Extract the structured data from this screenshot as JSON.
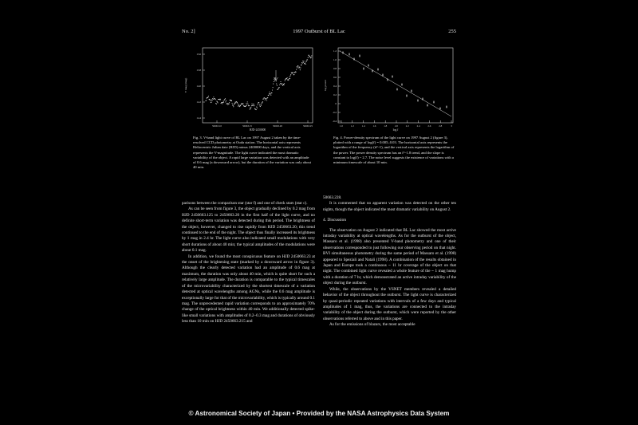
{
  "header": {
    "left": "No. 2]",
    "center": "1997 Outburst of BL Lac",
    "right": "255"
  },
  "fig3": {
    "ylabel": "V mag (mag)",
    "xlabel": "HJD-2450000",
    "yticks": [
      "13.6",
      "13.8",
      "14.0",
      "14.2",
      "14.4"
    ],
    "xticks": [
      "50663.10",
      "50663.15",
      "50663.20",
      "50663.25"
    ],
    "caption": "Fig. 3. V-band light curve of BL Lac on 1997 August 2 taken by the time-resolved CCD photometry at Ouda station. The horizontal axis represents Heliocentric Julian date (HJD) minus 2400000 days, and the vertical axis represents the V-magnitude. The light curve indicated the most dramatic variability of the object. A rapid large variation was detected with an amplitude of 0.6 mag (a downward arrow), but the duration of the variation was only about 40 min."
  },
  "fig4": {
    "ylabel": "log power",
    "xlabel": "log f",
    "yticks": [
      "1.2",
      "1.0",
      "0.8",
      "0.6",
      "0.4",
      "0.2",
      "0",
      "-0.2",
      "-0.4"
    ],
    "xticks": [
      "1.0",
      "1.2",
      "1.4",
      "1.6",
      "1.8",
      "2.0",
      "2.2",
      "2.4",
      "2.6",
      "2.8",
      "3"
    ],
    "caption": "Fig. 4. Power-density spectrum of the light curve on 1997 August 2 (figure 3), plotted with a range of log(f) = 0.005–0.03. The horizontal axis represents the logarithm of the frequency (d^-1), and the vertical axis represents the logarithm of the power. The power density spectrum has an f^-1.8 trend, and the slope is constant to log(f) ~ 2.7. The noise level suggests the existence of variations with a minimum timescale of about 10 min."
  },
  "left_col": [
    "parisons between the comparison star (star f) and one of check stars (star c).",
    "As can be seen from figure 3, the object gradually declined by 0.2 mag from HJD 2450663.125 to 2450663.20 in the first half of the light curve, and no definite short-term variation was detected during this period. The brightness of the object, however, changed to rise rapidly from HJD 2450663.20; this trend continued to the end of the night. The object thus finally increased its brightness by 1 mag in 2.4 hr. The light curve also indicated small modulations with very short durations of about 40 min; the typical amplitudes of the modulations were about 0.1 mag.",
    "In addition, we found the most conspicuous feature on HJD 2450663.23 at the onset of the brightening state (marked by a downward arrow in figure 3). Although the clearly detected variation had an amplitude of 0.6 mag at maximum, the duration was only about 40 min, which is quite short for such a relatively large amplitude. The duration is comparable to the typical timescales of the microvariability characterized by the shortest timescale of a variation detected at optical wavelengths among AGNs, while the 0.6 mag amplitude is exceptionally large for that of the microvariability, which is typically around 0.1 mag. The unprecedented rapid variation corresponds to an approximately 70% change of the optical brightness within 40 min. We additionally detected spike-like small variations with amplitudes of 0.2–0.3 mag and durations of obviously less than 10 min on HJD 2450663.215 and"
  ],
  "right_col": {
    "cont": "50663.228.",
    "p1": "It is commented that no apparent variation was detected on the other ten nights, though the object indicated the most dramatic variability on August 2.",
    "heading": "4.   Discussion",
    "p2": "The observation on August 2 indicated that BL Lac showed the most active intraday variability at optical wavelengths. As for the outburst of the object, Massaro et al. (1998) also presented V-band photometry and one of their observations corresponded to just following our observing period on that night. BVI simultaneous photometry during the same period of Massaro et al. (1998) appeared to Speziali and Natali (1998). A combination of the results obtained in Japan and Europe took a continuous ~ 11 hr coverage of the object on that night. The combined light curve revealed a whole feature of the ~ 1 mag hump with a duration of 7 hr, which demonstrated an active intraday variability of the object during the outburst.",
    "p3": "While, the observations by the VSNET members revealed a detailed behavior of the object throughout the outburst. The light curve is characterized by quasi-periodic repeated variations with intervals of a few days and typical amplitudes of 1 mag, thus, the variations are connected to the intraday variability of the object during the outburst, which were reported by the other observations referred to above and in this paper.",
    "p4": "As for the emissions of blazars, the most acceptable"
  },
  "footer": "© Astronomical Society of Japan • Provided by the NASA Astrophysics Data System"
}
